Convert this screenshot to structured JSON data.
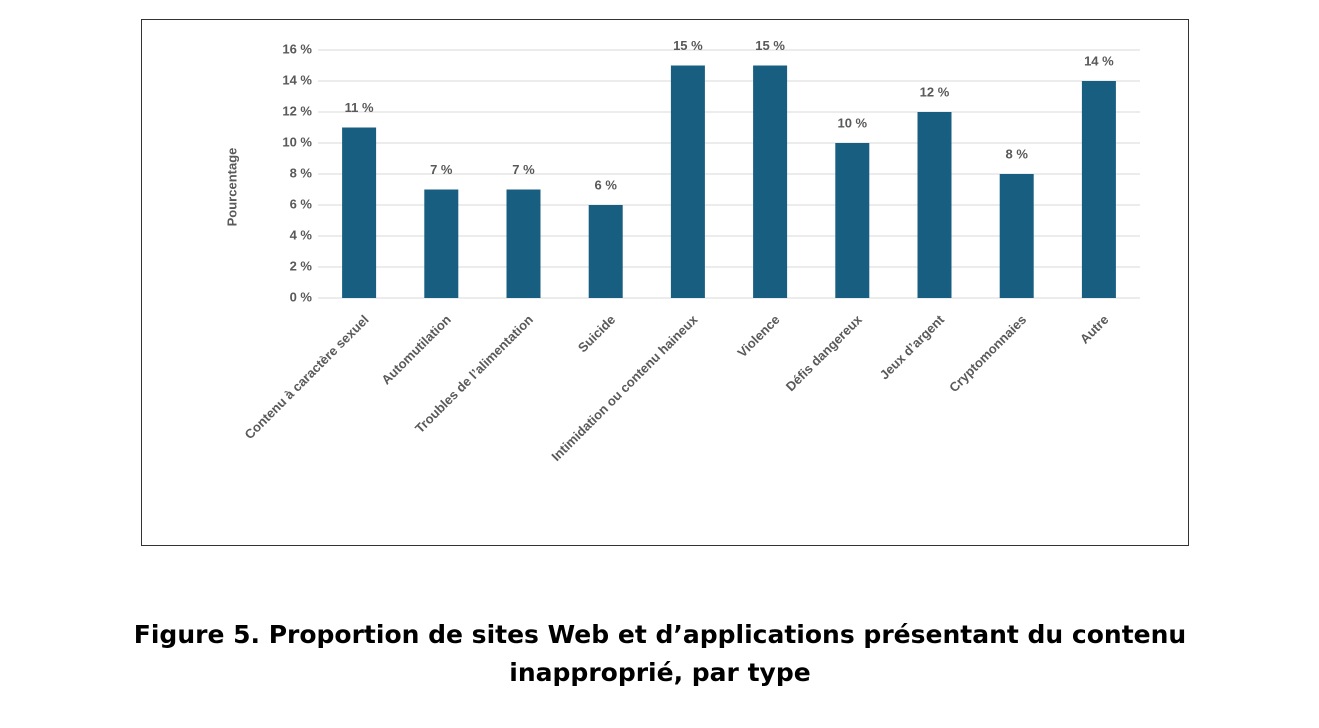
{
  "chart_data": {
    "type": "bar",
    "caption": "Figure 5. Proportion de sites Web et d’applications présentant du contenu inapproprié, par type",
    "y_label": "Pourcentage",
    "categories": [
      "Contenu à caractère sexuel",
      "Automutilation",
      "Troubles de l’alimentation",
      "Suicide",
      "Intimidation ou contenu haineux",
      "Violence",
      "Défis dangereux",
      "Jeux d’argent",
      "Cryptomonnaies",
      "Autre"
    ],
    "values": [
      11,
      7,
      7,
      6,
      15,
      15,
      10,
      12,
      8,
      14
    ],
    "value_labels": [
      "11 %",
      "7 %",
      "7 %",
      "6 %",
      "15 %",
      "15 %",
      "10 %",
      "12 %",
      "8 %",
      "14 %"
    ],
    "color": "#175e80",
    "ylim": [
      0,
      16
    ],
    "yticks": [
      {
        "value": 0,
        "label": "0 %"
      },
      {
        "value": 2,
        "label": "2 %"
      },
      {
        "value": 4,
        "label": "4 %"
      },
      {
        "value": 6,
        "label": "6 %"
      },
      {
        "value": 8,
        "label": "8 %"
      },
      {
        "value": 10,
        "label": "10 %"
      },
      {
        "value": 12,
        "label": "12 %"
      },
      {
        "value": 14,
        "label": "14 %"
      },
      {
        "value": 16,
        "label": "16 %"
      }
    ],
    "grid": true
  }
}
